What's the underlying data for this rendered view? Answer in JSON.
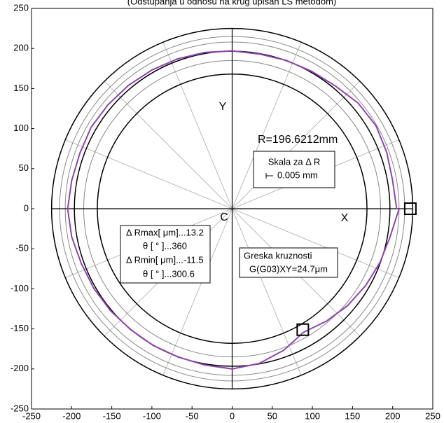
{
  "chart_data": {
    "type": "polar-deviation",
    "title": "(Odstupanja u odnosu na krug upisan LS metodom)",
    "xlim": [
      -250,
      250
    ],
    "ylim": [
      -250,
      250
    ],
    "xticks": [
      -250,
      -200,
      -150,
      -100,
      -50,
      0,
      50,
      100,
      150,
      200,
      250
    ],
    "yticks": [
      -250,
      -200,
      -150,
      -100,
      -50,
      0,
      50,
      100,
      150,
      200,
      250
    ],
    "axis_labels": {
      "x": "X",
      "y": "Y",
      "center": "C"
    },
    "circles": [
      {
        "r": 225,
        "color": "#000000"
      },
      {
        "r": 215,
        "color": "#888888"
      },
      {
        "r": 208,
        "color": "#888888"
      },
      {
        "r": 196.6,
        "color": "#000000"
      },
      {
        "r": 185,
        "color": "#888888"
      },
      {
        "r": 168,
        "color": "#000000"
      }
    ],
    "trace": {
      "color": "#8e44ad",
      "theta": [
        0,
        10,
        20,
        30,
        40,
        50,
        60,
        70,
        80,
        90,
        100,
        110,
        120,
        130,
        140,
        150,
        160,
        170,
        180,
        190,
        200,
        210,
        220,
        230,
        240,
        250,
        260,
        270,
        280,
        290,
        300,
        310,
        320,
        330,
        340,
        350,
        360
      ],
      "radius": [
        205,
        203,
        205,
        207,
        205,
        200,
        198,
        197,
        196,
        197,
        198,
        199,
        200,
        201,
        202,
        203,
        202,
        203,
        205,
        203,
        200,
        199,
        198,
        197,
        197,
        197,
        198,
        200,
        196,
        188,
        178,
        183,
        188,
        192,
        196,
        200,
        208
      ]
    },
    "markers": {
      "x": [
        222,
        88
      ],
      "y": [
        0,
        -151
      ]
    },
    "radius_label": "R=196.6212mm",
    "scale_box": {
      "line1": "Skala za Δ R",
      "line2": "0.005 mm"
    },
    "stats_box": [
      "Δ Rmax[ μm]...13.2",
      "θ [ ° ]...360",
      "Δ Rmin[ μm]...-11.5",
      "θ [ ° ]...300.6"
    ],
    "error_box": [
      "Greska kruznosti",
      "G(G03)XY=24.7μm"
    ]
  }
}
